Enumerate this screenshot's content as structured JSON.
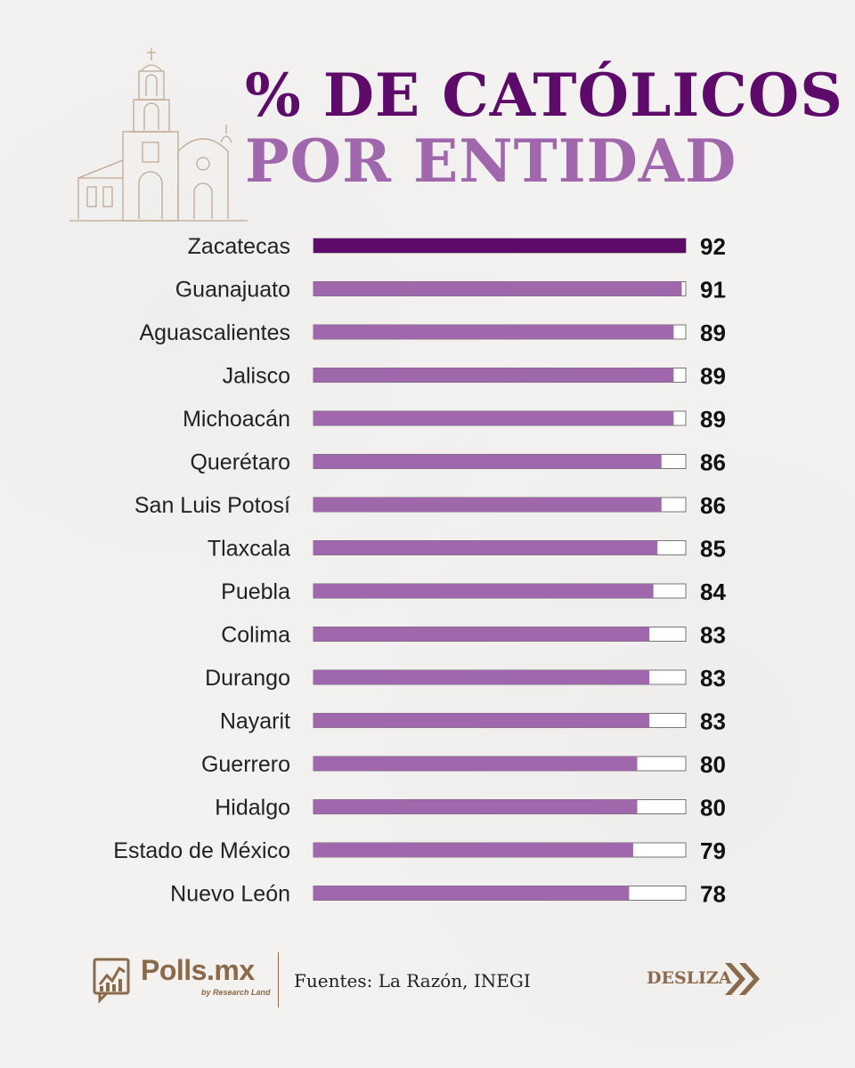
{
  "header": {
    "title_line1": "% DE CATÓLICOS",
    "title_line2": "POR ENTIDAD"
  },
  "colors": {
    "primary": "#5e0a6b",
    "secondary": "#a067ad",
    "brand": "#8a6a4a",
    "background": "#f3f2f1"
  },
  "chart_data": {
    "type": "bar",
    "orientation": "horizontal",
    "title": "% DE CATÓLICOS POR ENTIDAD",
    "xlabel": "",
    "ylabel": "",
    "xlim": [
      0,
      92
    ],
    "grid": false,
    "categories": [
      "Zacatecas",
      "Guanajuato",
      "Aguascalientes",
      "Jalisco",
      "Michoacán",
      "Querétaro",
      "San Luis Potosí",
      "Tlaxcala",
      "Puebla",
      "Colima",
      "Durango",
      "Nayarit",
      "Guerrero",
      "Hidalgo",
      "Estado de México",
      "Nuevo León"
    ],
    "values": [
      92,
      91,
      89,
      89,
      89,
      86,
      86,
      85,
      84,
      83,
      83,
      83,
      80,
      80,
      79,
      78
    ],
    "highlight_index": 0
  },
  "footer": {
    "brand": "Polls.mx",
    "brand_sub": "by Research Land",
    "sources": "Fuentes: La Razón, INEGI",
    "swipe_label": "DESLIZA"
  },
  "icons": {
    "logo": "polls-chart-icon",
    "swipe": "double-chevron-right-icon",
    "illustration": "church-illustration"
  }
}
